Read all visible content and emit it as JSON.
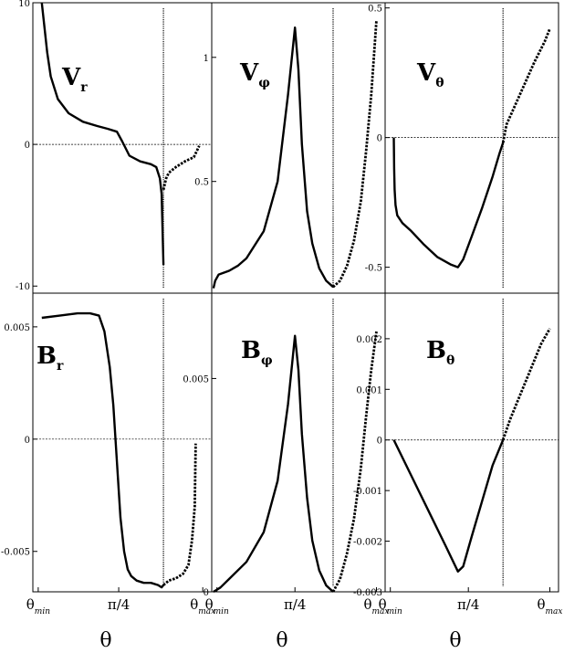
{
  "chart_data": [
    {
      "type": "line",
      "panel_label": "V",
      "panel_sub": "r",
      "ylim": [
        -10.5,
        10
      ],
      "yticks": [
        {
          "v": 10,
          "label": "10"
        },
        {
          "v": 0,
          "label": "0"
        },
        {
          "v": -10,
          "label": "-10"
        }
      ],
      "zero_line": true,
      "series": [
        {
          "style": "solid",
          "x": [
            0.05,
            0.08,
            0.1,
            0.14,
            0.2,
            0.28,
            0.36,
            0.42,
            0.47,
            0.5,
            0.54,
            0.6,
            0.66,
            0.69,
            0.71,
            0.72,
            0.725,
            0.73
          ],
          "y": [
            10,
            6.5,
            4.8,
            3.2,
            2.2,
            1.6,
            1.3,
            1.1,
            0.9,
            0.2,
            -0.8,
            -1.2,
            -1.4,
            -1.6,
            -2.4,
            -3.5,
            -6,
            -8.5
          ]
        },
        {
          "style": "dotted",
          "x": [
            0.73,
            0.745,
            0.76,
            0.8,
            0.85,
            0.9,
            0.93
          ],
          "y": [
            -3.2,
            -2.4,
            -2.0,
            -1.6,
            -1.2,
            -0.9,
            -0.1
          ]
        }
      ]
    },
    {
      "type": "line",
      "panel_label": "V",
      "panel_sub": "φ",
      "ylim": [
        0.05,
        1.22
      ],
      "yticks": [
        {
          "v": 1,
          "label": "1"
        },
        {
          "v": 0.5,
          "label": "0.5"
        }
      ],
      "zero_line": false,
      "series": [
        {
          "style": "solid",
          "x": [
            0.01,
            0.02,
            0.04,
            0.06,
            0.1,
            0.15,
            0.2,
            0.3,
            0.38,
            0.44,
            0.48,
            0.5,
            0.52,
            0.55,
            0.58,
            0.62,
            0.66,
            0.7
          ],
          "y": [
            0.07,
            0.1,
            0.125,
            0.13,
            0.14,
            0.16,
            0.19,
            0.3,
            0.5,
            0.85,
            1.12,
            0.95,
            0.65,
            0.38,
            0.25,
            0.15,
            0.1,
            0.075
          ]
        },
        {
          "style": "dotted",
          "x": [
            0.7,
            0.74,
            0.78,
            0.82,
            0.86,
            0.89,
            0.92,
            0.95
          ],
          "y": [
            0.075,
            0.1,
            0.16,
            0.26,
            0.42,
            0.62,
            0.85,
            1.15
          ]
        }
      ]
    },
    {
      "type": "line",
      "panel_label": "V",
      "panel_sub": "θ",
      "ylim": [
        -0.6,
        0.52
      ],
      "yticks": [
        {
          "v": 0.5,
          "label": "0.5"
        },
        {
          "v": 0,
          "label": "0"
        },
        {
          "v": -0.5,
          "label": "-0.5"
        }
      ],
      "zero_line": true,
      "series": [
        {
          "style": "solid",
          "x": [
            0.05,
            0.052,
            0.055,
            0.06,
            0.07,
            0.1,
            0.15,
            0.22,
            0.3,
            0.38,
            0.42,
            0.45,
            0.5,
            0.56,
            0.62,
            0.66,
            0.68
          ],
          "y": [
            0,
            -0.12,
            -0.2,
            -0.26,
            -0.3,
            -0.33,
            -0.36,
            -0.41,
            -0.46,
            -0.49,
            -0.5,
            -0.47,
            -0.38,
            -0.27,
            -0.15,
            -0.06,
            -0.02
          ]
        },
        {
          "style": "dotted",
          "x": [
            0.68,
            0.7,
            0.74,
            0.8,
            0.86,
            0.92,
            0.95
          ],
          "y": [
            -0.02,
            0.05,
            0.11,
            0.2,
            0.29,
            0.37,
            0.42
          ]
        }
      ]
    },
    {
      "type": "line",
      "panel_label": "B",
      "panel_sub": "r",
      "ylim": [
        -0.0068,
        0.0065
      ],
      "yticks": [
        {
          "v": 0.005,
          "label": "0.005"
        },
        {
          "v": 0,
          "label": "0"
        },
        {
          "v": -0.005,
          "label": "-0.005"
        }
      ],
      "zero_line": true,
      "xticks": [
        {
          "v": 0.03,
          "label": "θ",
          "sub": "min"
        },
        {
          "v": 0.48,
          "label": "π/4",
          "sub": ""
        },
        {
          "v": 0.95,
          "label": "θ",
          "sub": "max"
        }
      ],
      "series": [
        {
          "style": "solid",
          "x": [
            0.05,
            0.15,
            0.25,
            0.32,
            0.37,
            0.4,
            0.43,
            0.45,
            0.47,
            0.49,
            0.51,
            0.53,
            0.55,
            0.58,
            0.62,
            0.66,
            0.7,
            0.72,
            0.73
          ],
          "y": [
            0.0054,
            0.0055,
            0.0056,
            0.0056,
            0.0055,
            0.0048,
            0.0032,
            0.0015,
            -0.001,
            -0.0035,
            -0.005,
            -0.0058,
            -0.0061,
            -0.0063,
            -0.0064,
            -0.0064,
            -0.0065,
            -0.0066,
            -0.0065
          ]
        },
        {
          "style": "dotted",
          "x": [
            0.73,
            0.76,
            0.8,
            0.84,
            0.87,
            0.89,
            0.905,
            0.91
          ],
          "y": [
            -0.0065,
            -0.0063,
            -0.0062,
            -0.006,
            -0.0056,
            -0.0045,
            -0.003,
            -0.0002
          ]
        }
      ]
    },
    {
      "type": "line",
      "panel_label": "B",
      "panel_sub": "φ",
      "ylim": [
        0,
        0.007
      ],
      "yticks": [
        {
          "v": 0.005,
          "label": "0.005"
        },
        {
          "v": 0,
          "label": "0"
        }
      ],
      "zero_line": false,
      "xticks": [
        {
          "v": 0.03,
          "label": "θ",
          "sub": "min"
        },
        {
          "v": 0.48,
          "label": "π/4",
          "sub": ""
        },
        {
          "v": 0.95,
          "label": "θ",
          "sub": "max"
        }
      ],
      "series": [
        {
          "style": "solid",
          "x": [
            0.01,
            0.05,
            0.1,
            0.2,
            0.3,
            0.38,
            0.44,
            0.48,
            0.5,
            0.52,
            0.55,
            0.58,
            0.62,
            0.66,
            0.7
          ],
          "y": [
            0.0,
            0.0001,
            0.0003,
            0.0007,
            0.0014,
            0.0026,
            0.0044,
            0.006,
            0.0052,
            0.0037,
            0.0022,
            0.0012,
            0.0005,
            0.00015,
            0.0
          ]
        },
        {
          "style": "dotted",
          "x": [
            0.7,
            0.74,
            0.78,
            0.82,
            0.86,
            0.89,
            0.92,
            0.95
          ],
          "y": [
            0.0,
            0.0003,
            0.0009,
            0.0017,
            0.0029,
            0.0041,
            0.0052,
            0.0061
          ]
        }
      ]
    },
    {
      "type": "line",
      "panel_label": "B",
      "panel_sub": "θ",
      "ylim": [
        -0.003,
        0.0029
      ],
      "yticks": [
        {
          "v": 0.002,
          "label": "0.002"
        },
        {
          "v": 0.001,
          "label": "0.001"
        },
        {
          "v": 0,
          "label": "0"
        },
        {
          "v": -0.001,
          "label": "-0.001"
        },
        {
          "v": -0.002,
          "label": "-0.002"
        },
        {
          "v": -0.003,
          "label": "-0.003"
        }
      ],
      "zero_line": true,
      "xticks": [
        {
          "v": 0.03,
          "label": "θ",
          "sub": "min"
        },
        {
          "v": 0.48,
          "label": "π/4",
          "sub": ""
        },
        {
          "v": 0.95,
          "label": "θ",
          "sub": "max"
        }
      ],
      "series": [
        {
          "style": "solid",
          "x": [
            0.05,
            0.15,
            0.25,
            0.35,
            0.42,
            0.45,
            0.5,
            0.56,
            0.62,
            0.68
          ],
          "y": [
            0.0,
            -0.0007,
            -0.0014,
            -0.0021,
            -0.0026,
            -0.0025,
            -0.0019,
            -0.0012,
            -0.0005,
            0.0
          ]
        },
        {
          "style": "dotted",
          "x": [
            0.68,
            0.72,
            0.78,
            0.84,
            0.9,
            0.95
          ],
          "y": [
            0.0,
            0.0004,
            0.0009,
            0.0014,
            0.0019,
            0.0022
          ]
        }
      ]
    }
  ],
  "xlabels": [
    "θ",
    "θ",
    "θ"
  ]
}
